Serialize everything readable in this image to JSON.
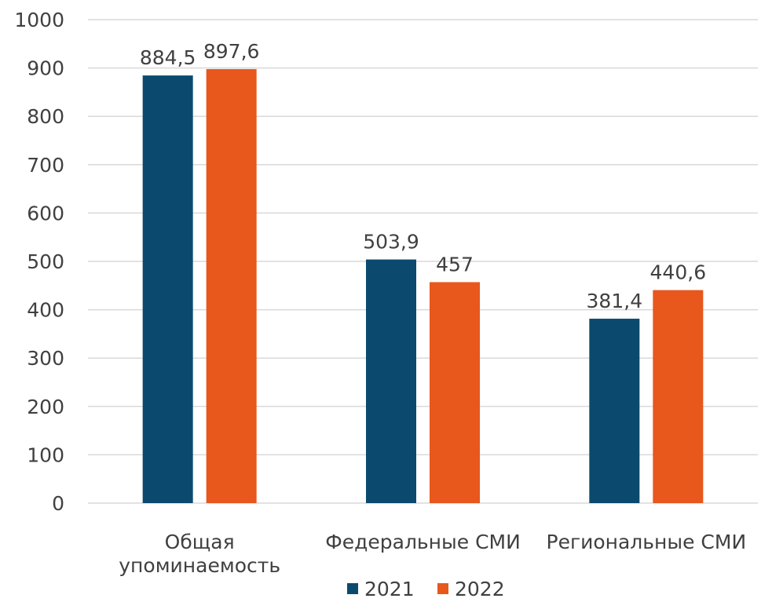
{
  "chart_data": {
    "type": "bar",
    "categories": [
      [
        "Общая",
        "упоминаемость"
      ],
      [
        "Федеральные СМИ"
      ],
      [
        "Региональные СМИ"
      ]
    ],
    "series": [
      {
        "name": "2021",
        "values": [
          884.5,
          503.9,
          381.4
        ],
        "labels": [
          "884,5",
          "503,9",
          "381,4"
        ],
        "color": "#0b4a6e"
      },
      {
        "name": "2022",
        "values": [
          897.6,
          457,
          440.6
        ],
        "labels": [
          "897,6",
          "457",
          "440,6"
        ],
        "color": "#e8571b"
      }
    ],
    "y_ticks": [
      "0",
      "100",
      "200",
      "300",
      "400",
      "500",
      "600",
      "700",
      "800",
      "900",
      "1000"
    ],
    "ylim": [
      0,
      1000
    ],
    "grid": true,
    "legend_position": "bottom",
    "title": "",
    "xlabel": "",
    "ylabel": ""
  }
}
